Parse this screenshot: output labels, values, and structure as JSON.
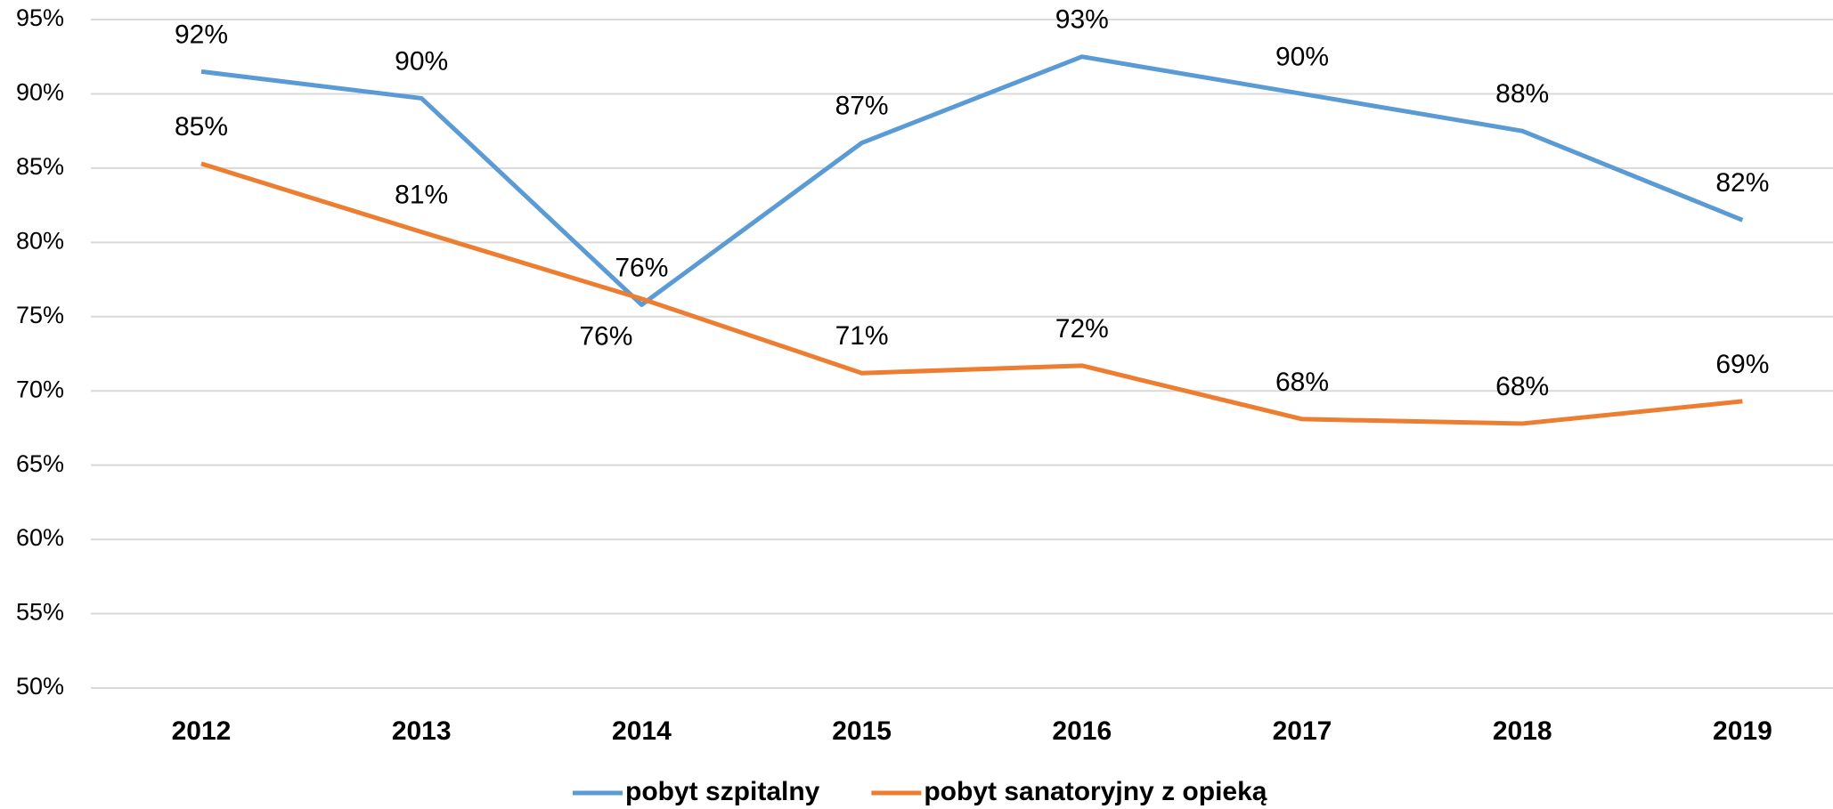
{
  "chart_data": {
    "type": "line",
    "categories": [
      "2012",
      "2013",
      "2014",
      "2015",
      "2016",
      "2017",
      "2018",
      "2019"
    ],
    "series": [
      {
        "name": "pobyt szpitalny",
        "color": "#5b9bd5",
        "values": [
          91.5,
          89.7,
          75.8,
          86.7,
          92.5,
          90.0,
          87.5,
          81.5
        ],
        "value_labels": [
          "92%",
          "90%",
          "76%",
          "87%",
          "93%",
          "90%",
          "88%",
          "82%"
        ]
      },
      {
        "name": "pobyt sanatoryjny z opieką",
        "color": "#ed7d31",
        "values": [
          85.3,
          80.7,
          76.2,
          71.2,
          71.7,
          68.1,
          67.8,
          69.3
        ],
        "value_labels": [
          "85%",
          "81%",
          "76%",
          "71%",
          "72%",
          "68%",
          "68%",
          "69%"
        ]
      }
    ],
    "ylim": [
      50,
      95
    ],
    "yticks": [
      {
        "value": 50,
        "label": "50%"
      },
      {
        "value": 55,
        "label": "55%"
      },
      {
        "value": 60,
        "label": "60%"
      },
      {
        "value": 65,
        "label": "65%"
      },
      {
        "value": 70,
        "label": "70%"
      },
      {
        "value": 75,
        "label": "75%"
      },
      {
        "value": 80,
        "label": "80%"
      },
      {
        "value": 85,
        "label": "85%"
      },
      {
        "value": 90,
        "label": "90%"
      },
      {
        "value": 95,
        "label": "95%"
      }
    ],
    "grid": true,
    "legend": "bottom"
  }
}
